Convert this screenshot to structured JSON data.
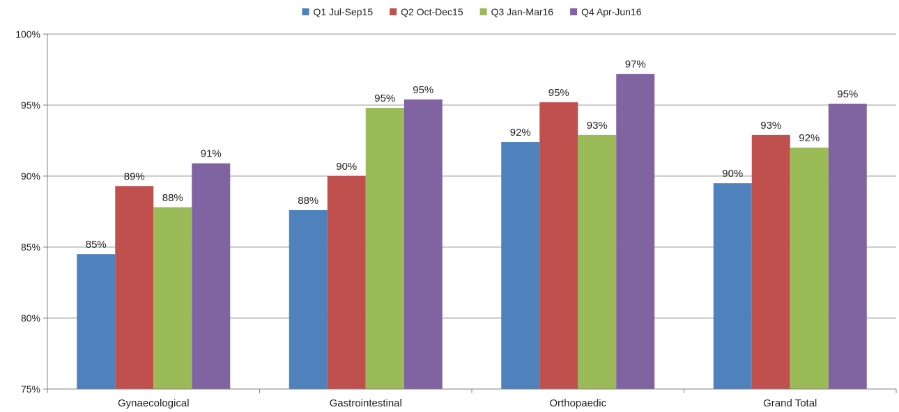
{
  "chart_data": {
    "type": "bar",
    "categories": [
      "Gynaecological",
      "Gastrointestinal",
      "Orthopaedic",
      "Grand Total"
    ],
    "series": [
      {
        "name": "Q1 Jul-Sep15",
        "color": "#4F81BD",
        "values": [
          84.5,
          87.6,
          92.4,
          89.5
        ],
        "labels": [
          "85%",
          "88%",
          "92%",
          "90%"
        ]
      },
      {
        "name": "Q2 Oct-Dec15",
        "color": "#C0504D",
        "values": [
          89.3,
          90.0,
          95.2,
          92.9
        ],
        "labels": [
          "89%",
          "90%",
          "95%",
          "93%"
        ]
      },
      {
        "name": "Q3 Jan-Mar16",
        "color": "#9BBB59",
        "values": [
          87.8,
          94.8,
          92.9,
          92.0
        ],
        "labels": [
          "88%",
          "95%",
          "93%",
          "92%"
        ]
      },
      {
        "name": "Q4 Apr-Jun16",
        "color": "#8064A2",
        "values": [
          90.9,
          95.4,
          97.2,
          95.1
        ],
        "labels": [
          "91%",
          "95%",
          "97%",
          "95%"
        ]
      }
    ],
    "ylim": [
      75,
      100
    ],
    "y_ticks": [
      75,
      80,
      85,
      90,
      95,
      100
    ],
    "y_tick_labels": [
      "75%",
      "80%",
      "85%",
      "90%",
      "95%",
      "100%"
    ],
    "grid": true,
    "legend_position": "top-center",
    "title": "",
    "xlabel": "",
    "ylabel": ""
  }
}
